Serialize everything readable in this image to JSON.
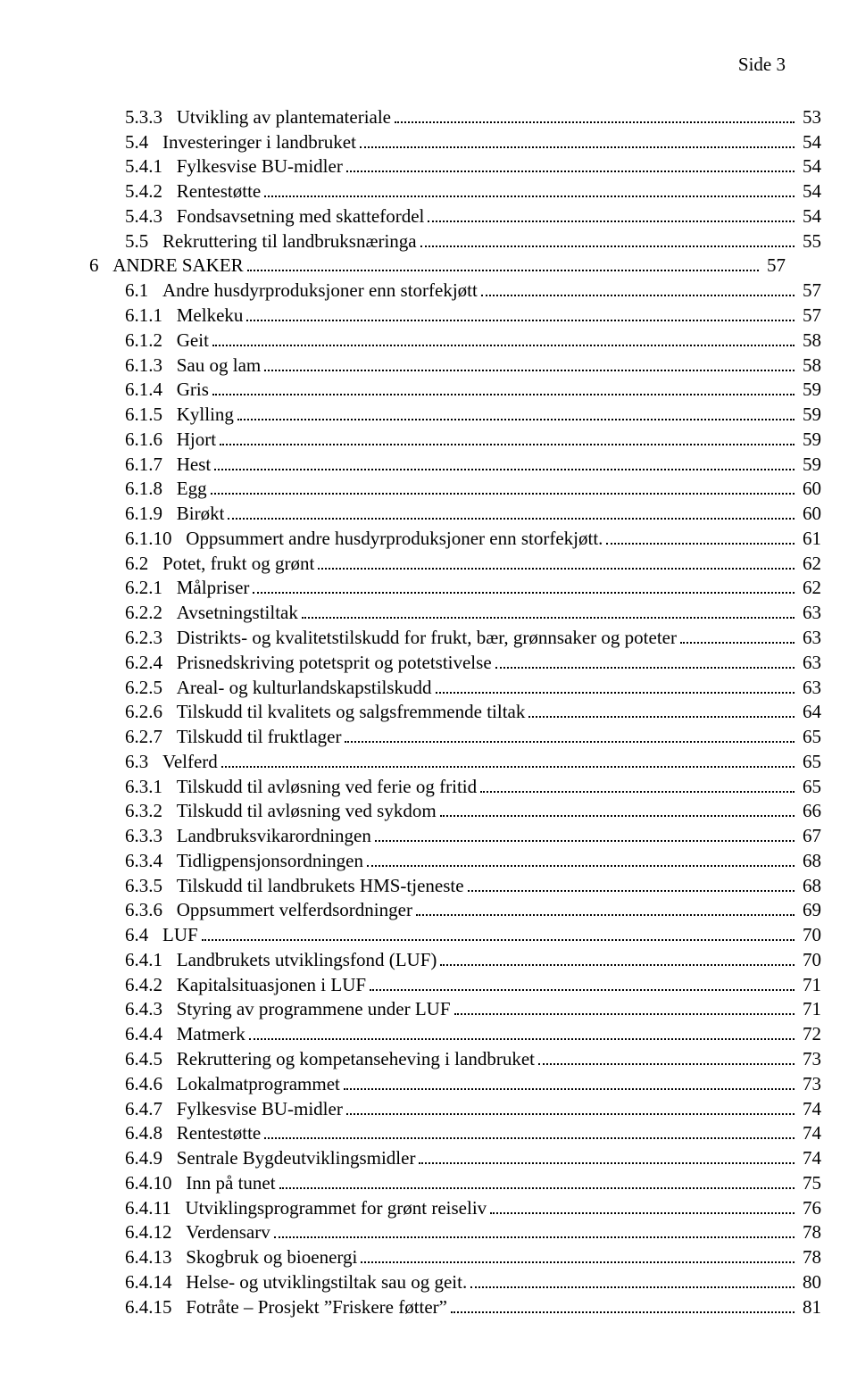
{
  "header": {
    "text": "Side 3"
  },
  "toc": [
    {
      "indent": 3,
      "num": "5.3.3",
      "label": "Utvikling av plantemateriale",
      "page": "53"
    },
    {
      "indent": 2,
      "num": "5.4",
      "label": "Investeringer i landbruket",
      "page": "54"
    },
    {
      "indent": 3,
      "num": "5.4.1",
      "label": "Fylkesvise BU-midler",
      "page": "54"
    },
    {
      "indent": 3,
      "num": "5.4.2",
      "label": "Rentestøtte",
      "page": "54"
    },
    {
      "indent": 3,
      "num": "5.4.3",
      "label": "Fondsavsetning med skattefordel",
      "page": "54"
    },
    {
      "indent": 2,
      "num": "5.5",
      "label": "Rekruttering til landbruksnæringa",
      "page": "55"
    },
    {
      "indent": 0,
      "num": "6",
      "label": "ANDRE SAKER",
      "page": "57"
    },
    {
      "indent": 2,
      "num": "6.1",
      "label": "Andre husdyrproduksjoner enn storfekjøtt",
      "page": "57"
    },
    {
      "indent": 3,
      "num": "6.1.1",
      "label": "Melkeku",
      "page": "57"
    },
    {
      "indent": 3,
      "num": "6.1.2",
      "label": "Geit",
      "page": "58"
    },
    {
      "indent": 3,
      "num": "6.1.3",
      "label": "Sau og lam",
      "page": "58"
    },
    {
      "indent": 3,
      "num": "6.1.4",
      "label": "Gris",
      "page": "59"
    },
    {
      "indent": 3,
      "num": "6.1.5",
      "label": "Kylling",
      "page": "59"
    },
    {
      "indent": 3,
      "num": "6.1.6",
      "label": "Hjort",
      "page": "59"
    },
    {
      "indent": 3,
      "num": "6.1.7",
      "label": "Hest",
      "page": "59"
    },
    {
      "indent": 3,
      "num": "6.1.8",
      "label": "Egg",
      "page": "60"
    },
    {
      "indent": 3,
      "num": "6.1.9",
      "label": "Birøkt",
      "page": "60"
    },
    {
      "indent": 3,
      "num": "6.1.10",
      "label": "Oppsummert andre husdyrproduksjoner enn storfekjøtt.",
      "page": "61"
    },
    {
      "indent": 2,
      "num": "6.2",
      "label": "Potet, frukt og grønt",
      "page": "62"
    },
    {
      "indent": 3,
      "num": "6.2.1",
      "label": "Målpriser",
      "page": "62"
    },
    {
      "indent": 3,
      "num": "6.2.2",
      "label": "Avsetningstiltak",
      "page": "63"
    },
    {
      "indent": 3,
      "num": "6.2.3",
      "label": "Distrikts- og kvalitetstilskudd for frukt, bær, grønnsaker og poteter",
      "page": "63"
    },
    {
      "indent": 3,
      "num": "6.2.4",
      "label": "Prisnedskriving potetsprit og potetstivelse",
      "page": "63"
    },
    {
      "indent": 3,
      "num": "6.2.5",
      "label": "Areal- og kulturlandskapstilskudd",
      "page": "63"
    },
    {
      "indent": 3,
      "num": "6.2.6",
      "label": "Tilskudd til kvalitets og salgsfremmende tiltak",
      "page": "64"
    },
    {
      "indent": 3,
      "num": "6.2.7",
      "label": "Tilskudd til fruktlager",
      "page": "65"
    },
    {
      "indent": 2,
      "num": "6.3",
      "label": "Velferd",
      "page": "65"
    },
    {
      "indent": 3,
      "num": "6.3.1",
      "label": "Tilskudd til avløsning ved ferie og fritid",
      "page": "65"
    },
    {
      "indent": 3,
      "num": "6.3.2",
      "label": "Tilskudd til avløsning ved sykdom",
      "page": "66"
    },
    {
      "indent": 3,
      "num": "6.3.3",
      "label": "Landbruksvikarordningen",
      "page": "67"
    },
    {
      "indent": 3,
      "num": "6.3.4",
      "label": "Tidligpensjonsordningen",
      "page": "68"
    },
    {
      "indent": 3,
      "num": "6.3.5",
      "label": "Tilskudd til landbrukets HMS-tjeneste",
      "page": "68"
    },
    {
      "indent": 3,
      "num": "6.3.6",
      "label": "Oppsummert velferdsordninger",
      "page": "69"
    },
    {
      "indent": 2,
      "num": "6.4",
      "label": "LUF",
      "page": "70"
    },
    {
      "indent": 3,
      "num": "6.4.1",
      "label": "Landbrukets utviklingsfond (LUF)",
      "page": "70"
    },
    {
      "indent": 3,
      "num": "6.4.2",
      "label": "Kapitalsituasjonen i LUF",
      "page": "71"
    },
    {
      "indent": 3,
      "num": "6.4.3",
      "label": "Styring av programmene under LUF",
      "page": "71"
    },
    {
      "indent": 3,
      "num": "6.4.4",
      "label": "Matmerk",
      "page": "72"
    },
    {
      "indent": 3,
      "num": "6.4.5",
      "label": "Rekruttering og kompetanseheving i landbruket",
      "page": "73"
    },
    {
      "indent": 3,
      "num": "6.4.6",
      "label": "Lokalmatprogrammet",
      "page": "73"
    },
    {
      "indent": 3,
      "num": "6.4.7",
      "label": "Fylkesvise BU-midler",
      "page": "74"
    },
    {
      "indent": 3,
      "num": "6.4.8",
      "label": "Rentestøtte",
      "page": "74"
    },
    {
      "indent": 3,
      "num": "6.4.9",
      "label": "Sentrale Bygdeutviklingsmidler",
      "page": "74"
    },
    {
      "indent": 3,
      "num": "6.4.10",
      "label": "Inn på tunet",
      "page": "75"
    },
    {
      "indent": 3,
      "num": "6.4.11",
      "label": "Utviklingsprogrammet for grønt reiseliv",
      "page": "76"
    },
    {
      "indent": 3,
      "num": "6.4.12",
      "label": "Verdensarv",
      "page": "78"
    },
    {
      "indent": 3,
      "num": "6.4.13",
      "label": "Skogbruk og bioenergi",
      "page": "78"
    },
    {
      "indent": 3,
      "num": "6.4.14",
      "label": "Helse- og utviklingstiltak sau og geit.",
      "page": "80"
    },
    {
      "indent": 3,
      "num": "6.4.15",
      "label": "Fotråte – Prosjekt ”Friskere føtter”",
      "page": "81"
    }
  ],
  "style": {
    "num_gap": "   ",
    "font_family": "Times New Roman",
    "font_size_pt": 16,
    "leader_char": ".",
    "text_color": "#000000",
    "background_color": "#ffffff"
  }
}
